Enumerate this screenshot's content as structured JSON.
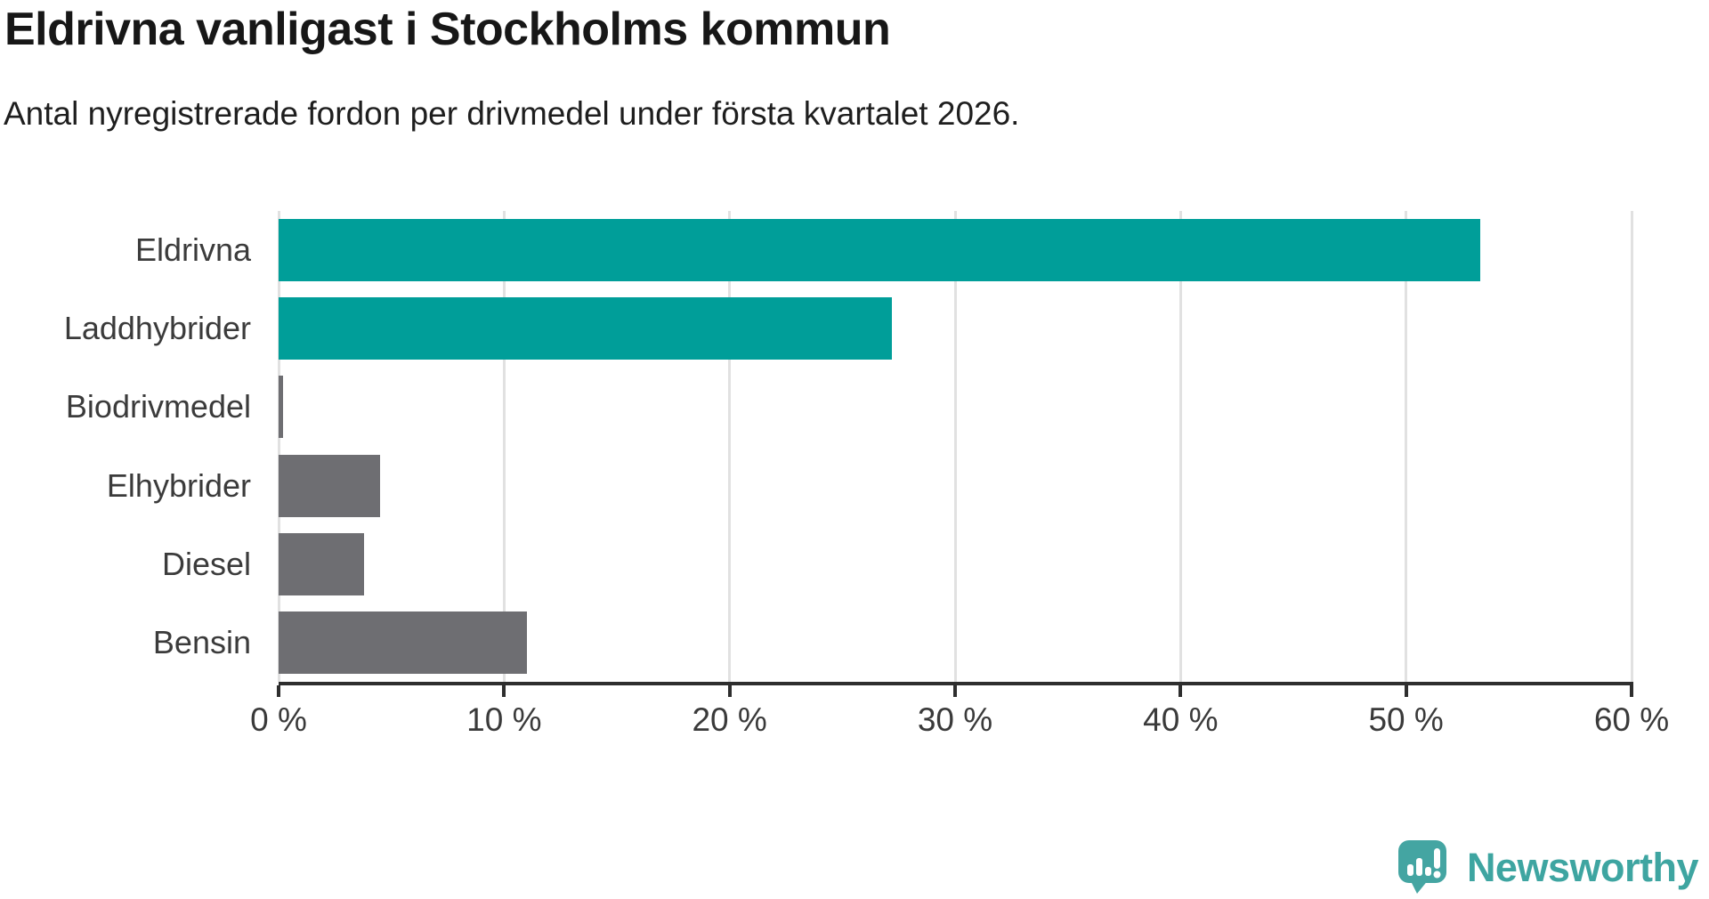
{
  "header": {
    "title": "Eldrivna vanligast i Stockholms kommun",
    "subtitle": "Antal nyregistrerade fordon per drivmedel under första kvartalet 2026."
  },
  "chart_data": {
    "type": "bar",
    "orientation": "horizontal",
    "title": "Eldrivna vanligast i Stockholms kommun",
    "subtitle": "Antal nyregistrerade fordon per drivmedel under första kvartalet 2026.",
    "categories": [
      "Eldrivna",
      "Laddhybrider",
      "Biodrivmedel",
      "Elhybrider",
      "Diesel",
      "Bensin"
    ],
    "values": [
      53.3,
      27.2,
      0.2,
      4.5,
      3.8,
      11.0
    ],
    "unit": "%",
    "xlim": [
      0,
      60
    ],
    "x_ticks": [
      0,
      10,
      20,
      30,
      40,
      50,
      60
    ],
    "x_tick_labels": [
      "0 %",
      "10 %",
      "20 %",
      "30 %",
      "40 %",
      "50 %",
      "60 %"
    ],
    "grid": true,
    "legend": false,
    "bar_colors": [
      "#009e99",
      "#009e99",
      "#6e6e72",
      "#6e6e72",
      "#6e6e72",
      "#6e6e72"
    ],
    "accent_color": "#009e99",
    "default_color": "#6e6e72",
    "gridline_color": "#e1e1e1",
    "axis_color": "#2e2e2e",
    "label_color": "#3b3b3b"
  },
  "branding": {
    "logo_text": "Newsworthy",
    "logo_color": "#3ea5a1",
    "logo_icon": "newsworthy-bubble-chart-icon"
  }
}
